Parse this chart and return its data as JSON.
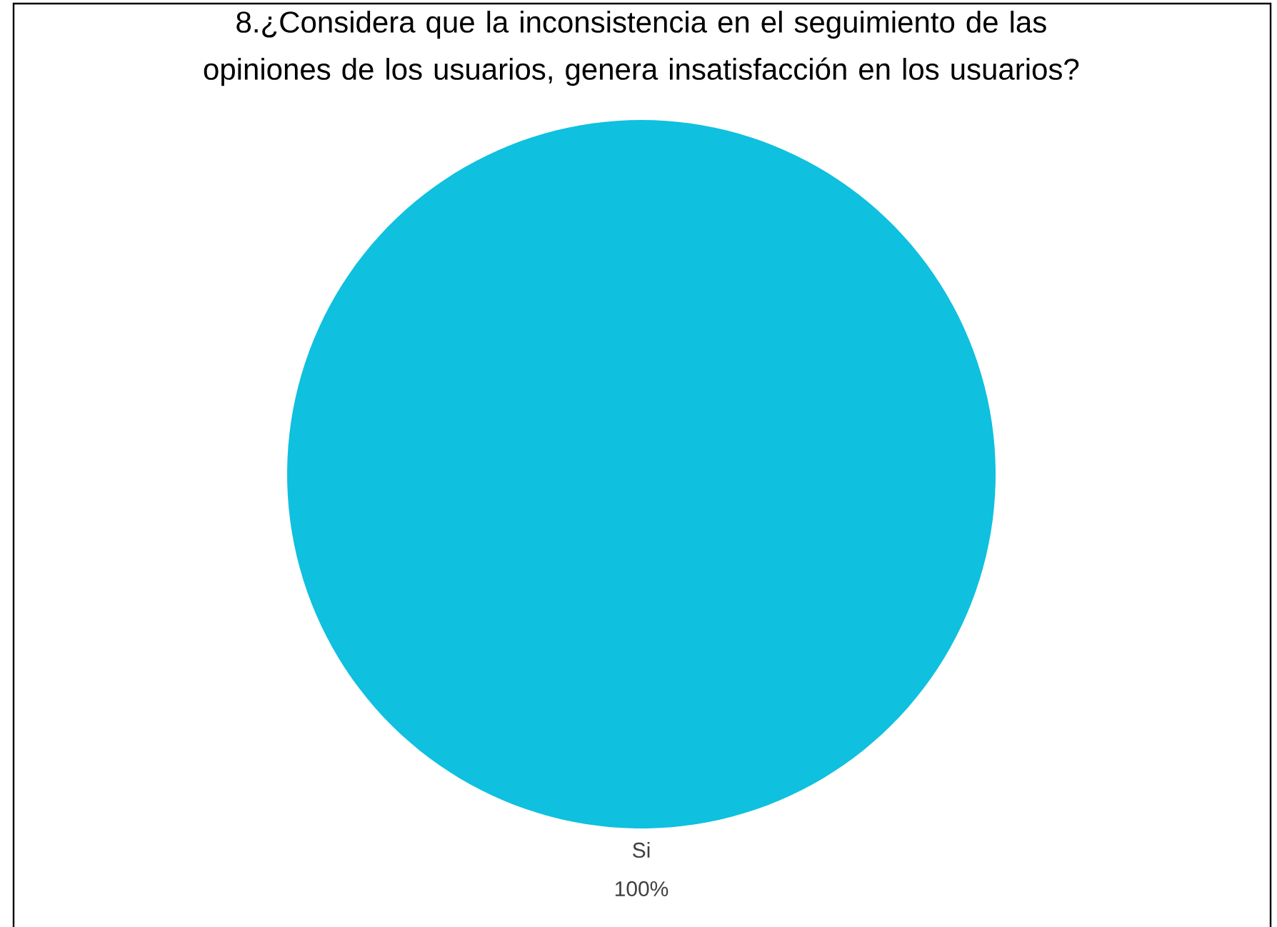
{
  "chart_data": {
    "type": "pie",
    "title": "8.¿Considera que la inconsistencia en el seguimiento de las opiniones de los usuarios, genera insatisfacción en los usuarios?",
    "categories": [
      "Si"
    ],
    "values": [
      100
    ],
    "colors": [
      "#0fc0df"
    ],
    "value_labels": [
      "100%"
    ]
  }
}
